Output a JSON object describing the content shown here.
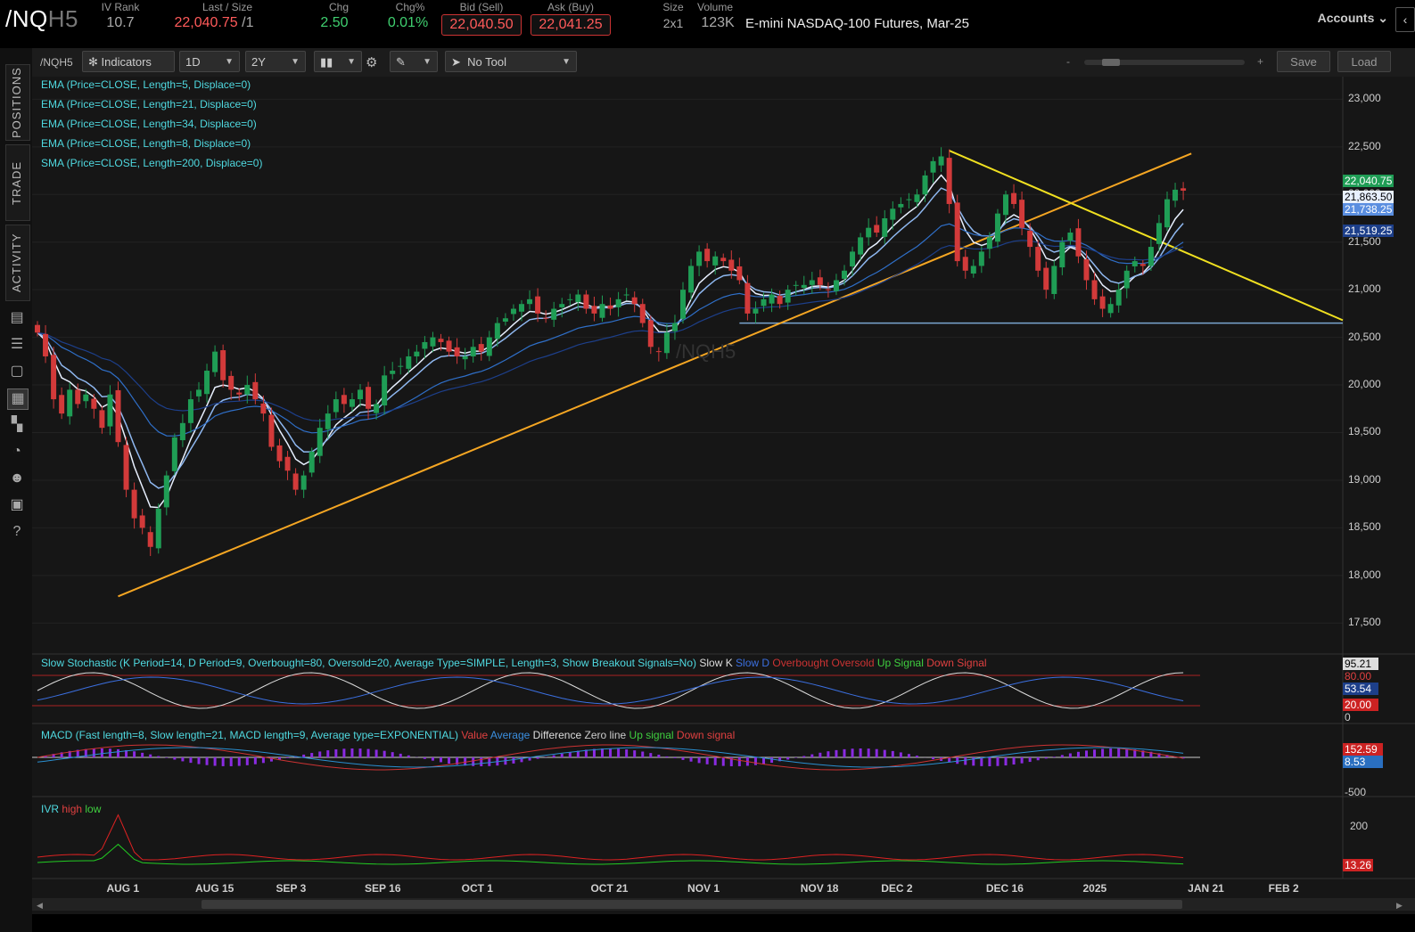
{
  "header": {
    "symbol_main": "/NQ",
    "symbol_suffix": "H5",
    "iv_rank_label": "IV Rank",
    "iv_rank_value": "10.7",
    "last_label": "Last / Size",
    "last_value": "22,040.75",
    "last_size": " /1",
    "chg_label": "Chg",
    "chg_value": "2.50",
    "chgpct_label": "Chg%",
    "chgpct_value": "0.01%",
    "bid_label": "Bid (Sell)",
    "bid_value": "22,040.50",
    "ask_label": "Ask (Buy)",
    "ask_value": "22,041.25",
    "size_label": "Size",
    "size_value": "2x1",
    "volume_label": "Volume",
    "volume_value": "123K",
    "description": "E-mini NASDAQ-100 Futures, Mar-25",
    "accounts_label": "Accounts"
  },
  "sidebar": {
    "tabs": [
      "POSITIONS",
      "TRADE",
      "ACTIVITY"
    ]
  },
  "toolbar": {
    "symbol": "/NQH5",
    "indicators_label": "Indicators",
    "interval": "1D",
    "range": "2Y",
    "tool": "No Tool",
    "zoom_minus": "-",
    "zoom_plus": "+",
    "save_label": "Save",
    "load_label": "Load"
  },
  "studies": [
    "EMA (Price=CLOSE, Length=5, Displace=0)",
    "EMA (Price=CLOSE, Length=21, Displace=0)",
    "EMA (Price=CLOSE, Length=34, Displace=0)",
    "EMA (Price=CLOSE, Length=8, Displace=0)",
    "SMA (Price=CLOSE, Length=200, Displace=0)"
  ],
  "watermark": "/NQH5",
  "price_axis": [
    "23,000",
    "22,500",
    "22,000",
    "21,500",
    "21,000",
    "20,500",
    "20,000",
    "19,500",
    "19,000",
    "18,500",
    "18,000",
    "17,500"
  ],
  "price_tags": [
    {
      "text": "22,040.75",
      "color": "#1f9d55"
    },
    {
      "text": "21,863.50",
      "color": "#e8f0ff"
    },
    {
      "text": "21,738.25",
      "color": "#5a8ee0"
    },
    {
      "text": "21,519.25",
      "color": "#1d3f8a"
    }
  ],
  "x_axis": [
    "AUG 1",
    "AUG 15",
    "SEP 3",
    "SEP 16",
    "OCT 1",
    "OCT 21",
    "NOV 1",
    "NOV 18",
    "DEC 2",
    "DEC 16",
    "2025",
    "JAN 21",
    "FEB 2"
  ],
  "stochastic": {
    "title": "Slow Stochastic (K Period=14, D Period=9, Overbought=80, Oversold=20, Average Type=SIMPLE, Length=3, Show Breakout Signals=No)",
    "legend": [
      "Slow K",
      "Slow D",
      "Overbought",
      "Oversold",
      "Up Signal",
      "Down Signal"
    ],
    "tags": [
      "95.21",
      "80.00",
      "53.54",
      "20.00",
      "0"
    ]
  },
  "macd": {
    "title": "MACD (Fast length=8, Slow length=21, MACD length=9, Average type=EXPONENTIAL)",
    "legend": [
      "Value",
      "Average",
      "Difference",
      "Zero line",
      "Up signal",
      "Down signal"
    ],
    "tags": [
      "152.59",
      "8.53",
      "-500"
    ]
  },
  "ivr": {
    "title": "IVR",
    "legend": [
      "high",
      "low"
    ],
    "tags": [
      "200",
      "13.26"
    ]
  },
  "colors": {
    "up": "#1f9d55",
    "down": "#d23a3a",
    "trend_up": "#f5a623",
    "trend_down": "#f0e020",
    "support": "#7aa5d0"
  },
  "chart_data": {
    "type": "candlestick",
    "ylim": [
      17250,
      23200
    ],
    "support_level": 20650,
    "closes": [
      20550,
      20300,
      19850,
      19700,
      19950,
      19800,
      19900,
      19750,
      19550,
      19900,
      19400,
      18900,
      18600,
      18500,
      18300,
      18700,
      19050,
      19450,
      19600,
      19850,
      19950,
      20150,
      20350,
      20050,
      19950,
      19900,
      20000,
      19850,
      19700,
      19350,
      19200,
      19100,
      18900,
      19050,
      19300,
      19550,
      19700,
      19850,
      19800,
      19850,
      19950,
      19750,
      19800,
      20100,
      20150,
      20200,
      20300,
      20350,
      20450,
      20500,
      20450,
      20350,
      20300,
      20300,
      20400,
      20350,
      20500,
      20650,
      20700,
      20800,
      20850,
      20900,
      20750,
      20700,
      20800,
      20850,
      20900,
      20950,
      20800,
      20750,
      20850,
      20800,
      20900,
      20950,
      20850,
      20650,
      20400,
      20350,
      20550,
      20650,
      21000,
      21250,
      21400,
      21300,
      21350,
      21300,
      21200,
      21100,
      20750,
      20800,
      20900,
      20950,
      20850,
      21000,
      21050,
      21050,
      21100,
      21050,
      21000,
      21100,
      21200,
      21400,
      21550,
      21650,
      21600,
      21750,
      21850,
      21900,
      21950,
      22000,
      22200,
      22350,
      22400,
      21900,
      21300,
      21200,
      21250,
      21400,
      21550,
      21800,
      22000,
      21900,
      21650,
      21450,
      21200,
      21000,
      21250,
      21500,
      21600,
      21350,
      21100,
      20900,
      20800,
      20850,
      21000,
      21200,
      21300,
      21250,
      21450,
      21700,
      21950,
      22050,
      22040
    ]
  }
}
